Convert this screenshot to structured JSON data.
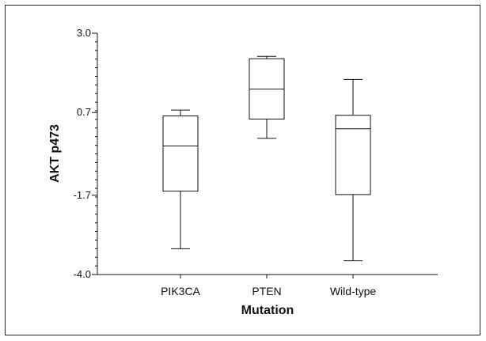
{
  "chart_data": {
    "type": "box",
    "xlabel": "Mutation",
    "ylabel": "AKT p473",
    "ylim": [
      -4.0,
      3.0
    ],
    "yticks": [
      "3.0",
      "0.7",
      "-1.7",
      "-4.0"
    ],
    "ytick_values": [
      3.0,
      0.7,
      -1.7,
      -4.0
    ],
    "minor_tick_step": 0.25,
    "grid": false,
    "categories": [
      "PIK3CA",
      "PTEN",
      "Wild-type"
    ],
    "boxes": [
      {
        "category": "PIK3CA",
        "min": -3.25,
        "q1": -1.58,
        "median": -0.27,
        "q3": 0.6,
        "max": 0.77
      },
      {
        "category": "PTEN",
        "min": -0.05,
        "q1": 0.51,
        "median": 1.38,
        "q3": 2.26,
        "max": 2.33
      },
      {
        "category": "Wild-type",
        "min": -3.6,
        "q1": -1.68,
        "median": 0.23,
        "q3": 0.62,
        "max": 1.66
      }
    ]
  }
}
